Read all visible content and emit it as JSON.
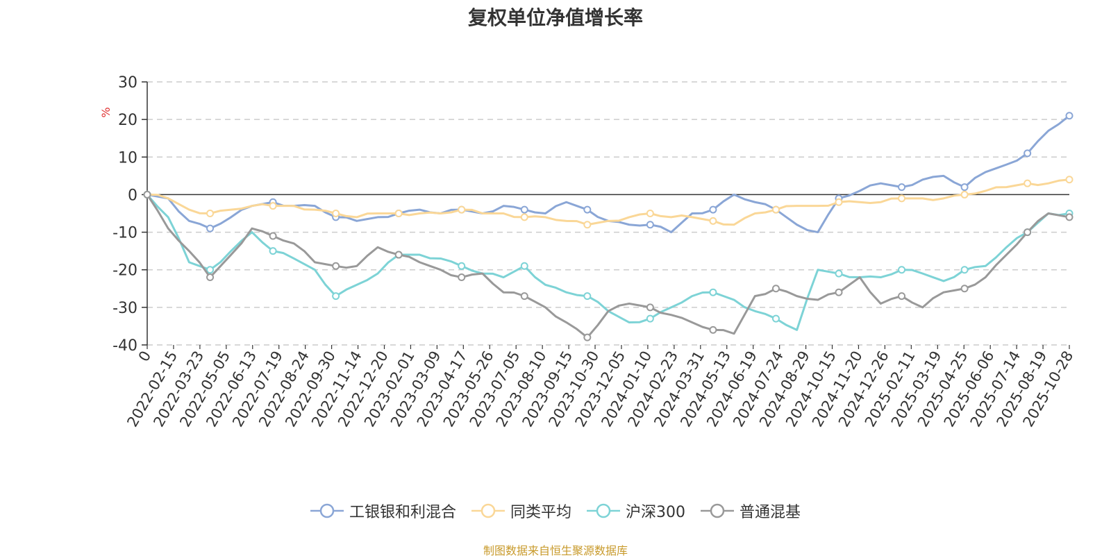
{
  "chart_data": {
    "type": "line",
    "title": "复权单位净值增长率",
    "ylabel": "%",
    "xlabel": "",
    "ylim": [
      -40,
      30
    ],
    "yticks": [
      30,
      20,
      10,
      0,
      -10,
      -20,
      -30,
      -40
    ],
    "grid": true,
    "legend_position": "bottom",
    "x_origin_label": "0",
    "x_tick_labels": [
      "2022-02-15",
      "2022-03-23",
      "2022-05-05",
      "2022-06-13",
      "2022-07-19",
      "2022-08-24",
      "2022-09-30",
      "2022-11-14",
      "2022-12-20",
      "2023-02-01",
      "2023-03-09",
      "2023-04-17",
      "2023-05-26",
      "2023-07-05",
      "2023-08-10",
      "2023-09-15",
      "2023-10-30",
      "2023-12-05",
      "2024-01-10",
      "2024-02-23",
      "2024-03-31",
      "2024-05-13",
      "2024-06-19",
      "2024-07-24",
      "2024-08-29",
      "2024-10-15",
      "2024-11-20",
      "2024-12-26",
      "2025-02-11",
      "2025-03-19",
      "2025-04-25",
      "2025-06-06",
      "2025-07-14",
      "2025-08-19",
      "2025-10-28"
    ],
    "series": [
      {
        "name": "工银银和利混合",
        "color": "#8aa6d6",
        "values": [
          0,
          -1,
          -7,
          -9,
          -6,
          -3,
          -2,
          -3,
          -3,
          -6,
          -7,
          -6,
          -5,
          -4,
          -5,
          -4,
          -5,
          -3,
          -4,
          -5,
          -2,
          -4,
          -7,
          -8,
          -8,
          -10,
          -5,
          -4,
          0,
          -2,
          -4,
          -8,
          -10,
          -1,
          1,
          3,
          2,
          4,
          5,
          2,
          6,
          8,
          11,
          17,
          21
        ]
      },
      {
        "name": "同类平均",
        "color": "#fad797",
        "values": [
          0,
          -1,
          -4,
          -5,
          -4,
          -3,
          -3,
          -3,
          -4,
          -5,
          -6,
          -5,
          -5,
          -5,
          -5,
          -4,
          -5,
          -5,
          -6,
          -6,
          -7,
          -8,
          -7,
          -6,
          -5,
          -6,
          -6,
          -7,
          -8,
          -5,
          -4,
          -3,
          -3,
          -2,
          -2,
          -2,
          -1,
          -1,
          -1,
          0,
          1,
          2,
          3,
          3,
          4
        ]
      },
      {
        "name": "沪深300",
        "color": "#7dd3d6",
        "values": [
          0,
          -6,
          -18,
          -20,
          -15,
          -10,
          -15,
          -17,
          -20,
          -27,
          -24,
          -21,
          -16,
          -16,
          -17,
          -19,
          -21,
          -22,
          -19,
          -24,
          -26,
          -27,
          -31,
          -34,
          -33,
          -30,
          -27,
          -26,
          -28,
          -31,
          -33,
          -36,
          -20,
          -21,
          -22,
          -22,
          -20,
          -21,
          -23,
          -20,
          -19,
          -14,
          -10,
          -5,
          -5
        ]
      },
      {
        "name": "普通混基",
        "color": "#999999",
        "values": [
          0,
          -9,
          -15,
          -22,
          -16,
          -9,
          -11,
          -13,
          -18,
          -19,
          -19,
          -14,
          -16,
          -18,
          -20,
          -22,
          -21,
          -26,
          -27,
          -30,
          -34,
          -38,
          -31,
          -29,
          -30,
          -32,
          -34,
          -36,
          -37,
          -27,
          -25,
          -27,
          -28,
          -26,
          -22,
          -29,
          -27,
          -30,
          -26,
          -25,
          -22,
          -16,
          -10,
          -5,
          -6
        ]
      }
    ]
  },
  "footer": {
    "source_note": "制图数据来自恒生聚源数据库"
  }
}
